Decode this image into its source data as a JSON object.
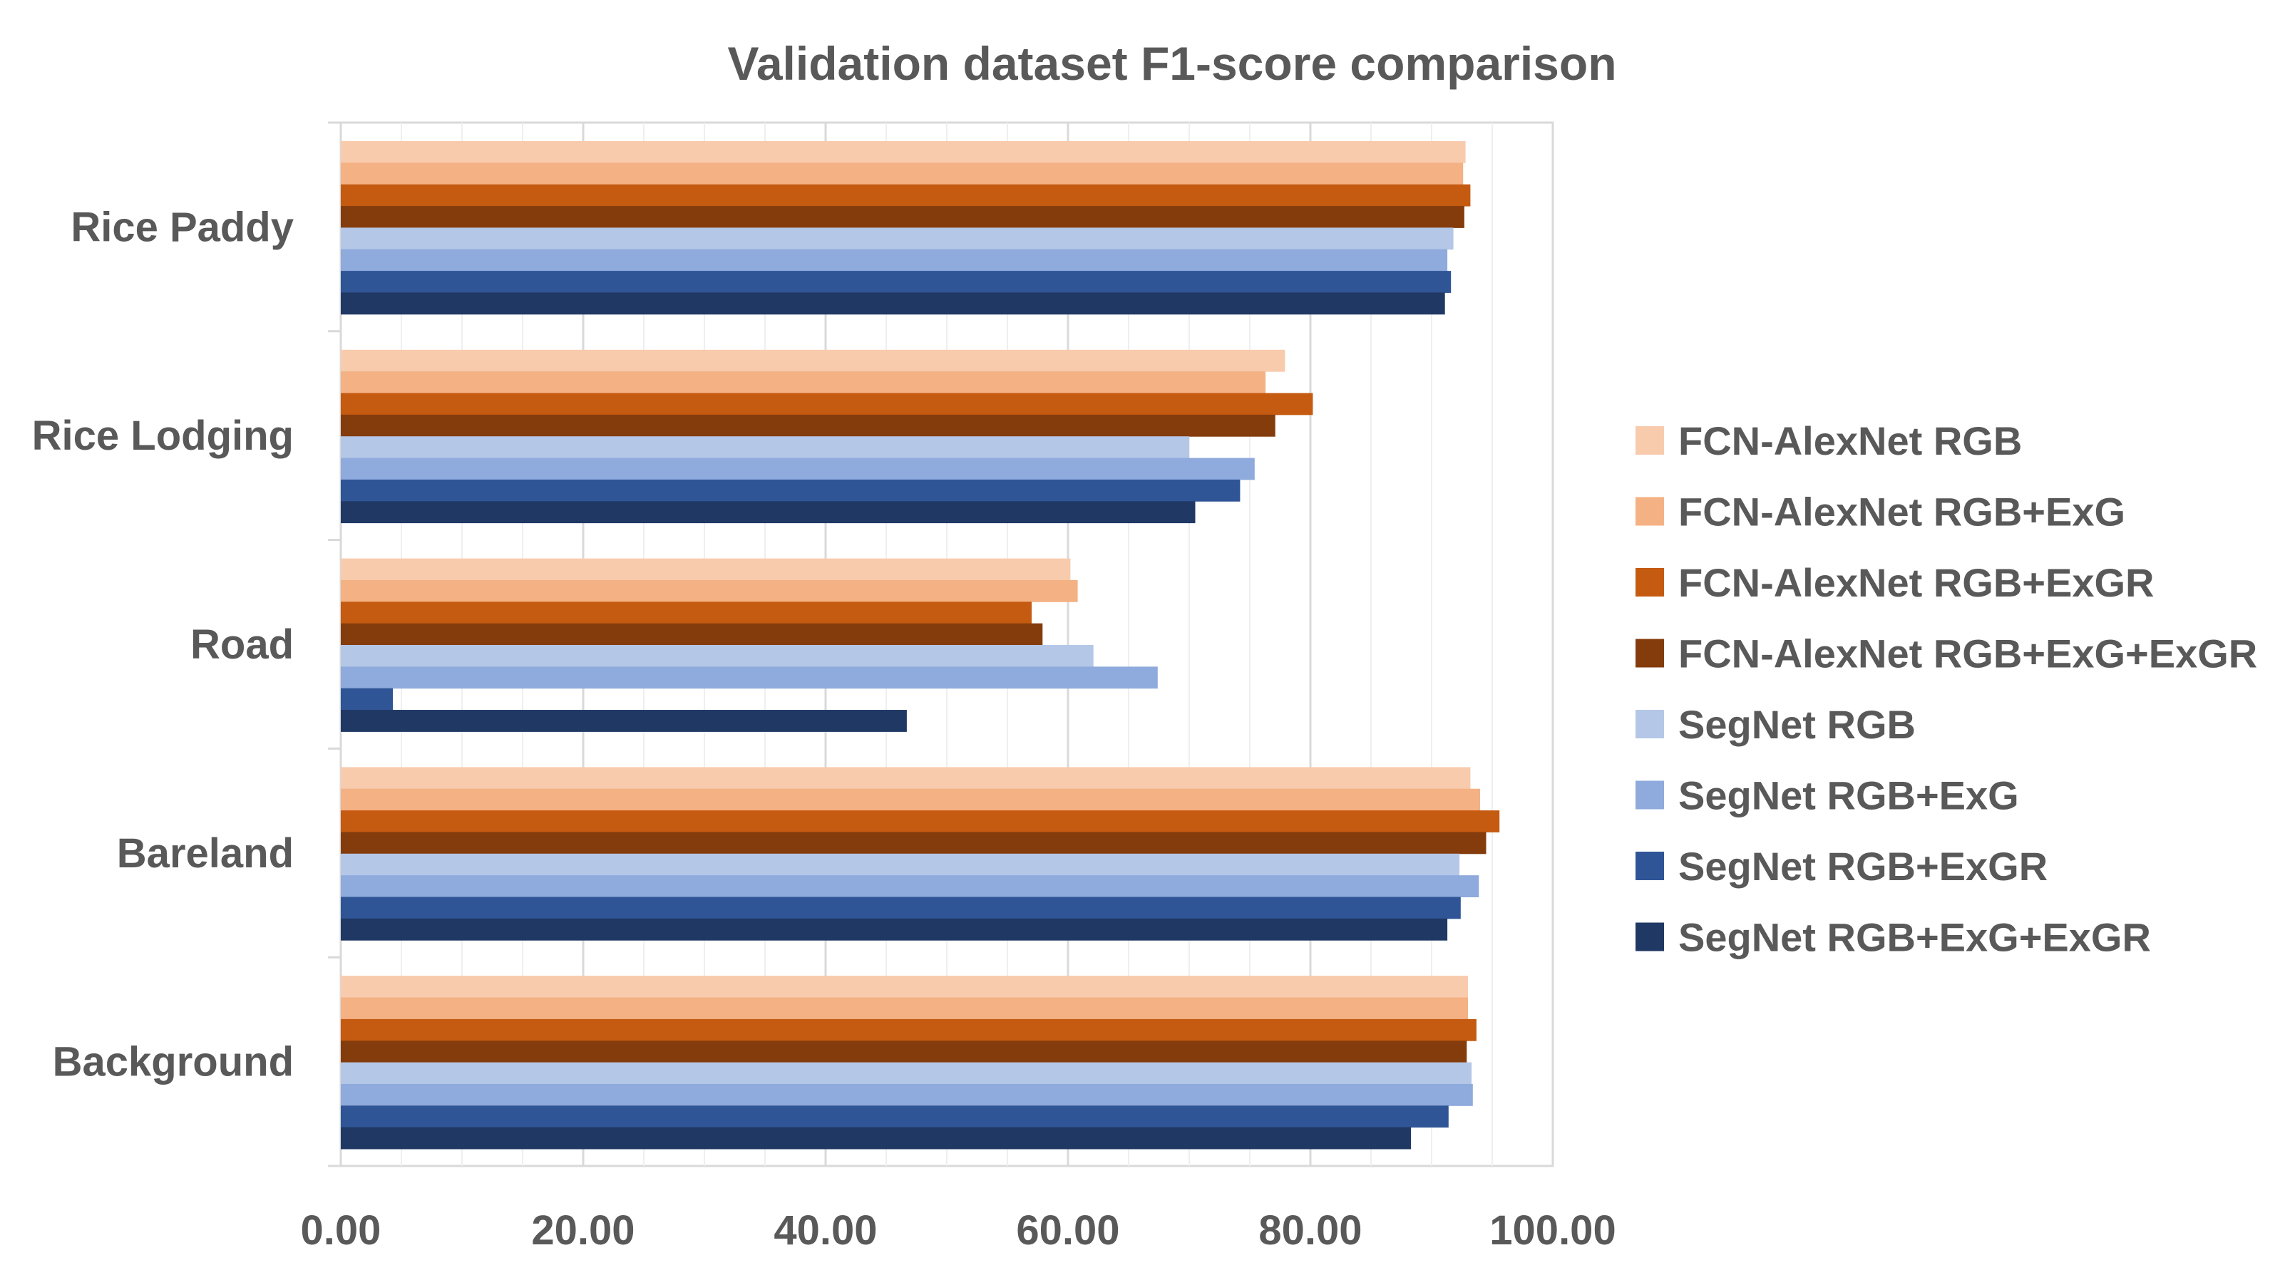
{
  "chart_data": {
    "type": "bar",
    "orientation": "horizontal",
    "title": "Validation dataset F1-score comparison",
    "xlabel": "",
    "ylabel": "",
    "xlim": [
      0,
      100
    ],
    "xticks": [
      0,
      20,
      40,
      60,
      80,
      100
    ],
    "tick_labels": [
      "0.00",
      "20.00",
      "40.00",
      "60.00",
      "80.00",
      "100.00"
    ],
    "grid": "vertical",
    "legend_position": "right",
    "categories": [
      "Rice Paddy",
      "Rice Lodging",
      "Road",
      "Bareland",
      "Background"
    ],
    "series": [
      {
        "name": "FCN-AlexNet RGB",
        "color": "#F8CBAD",
        "values": [
          92.8,
          77.9,
          60.2,
          93.2,
          93.0
        ]
      },
      {
        "name": "FCN-AlexNet RGB+ExG",
        "color": "#F4B183",
        "values": [
          92.6,
          76.3,
          60.8,
          94.0,
          93.0
        ]
      },
      {
        "name": "FCN-AlexNet RGB+ExGR",
        "color": "#C55A11",
        "values": [
          93.2,
          80.2,
          57.0,
          95.6,
          93.7
        ]
      },
      {
        "name": "FCN-AlexNet RGB+ExG+ExGR",
        "color": "#843C0C",
        "values": [
          92.7,
          77.1,
          57.9,
          94.5,
          92.9
        ]
      },
      {
        "name": "SegNet RGB",
        "color": "#B4C7E7",
        "values": [
          91.8,
          70.0,
          62.1,
          92.3,
          93.3
        ]
      },
      {
        "name": "SegNet RGB+ExG",
        "color": "#8FAADC",
        "values": [
          91.3,
          75.4,
          67.4,
          93.9,
          93.4
        ]
      },
      {
        "name": "SegNet RGB+ExGR",
        "color": "#2F5597",
        "values": [
          91.6,
          74.2,
          4.3,
          92.4,
          91.4
        ]
      },
      {
        "name": "SegNet RGB+ExG+ExGR",
        "color": "#203864",
        "values": [
          91.1,
          70.5,
          46.7,
          91.3,
          88.3
        ]
      }
    ]
  }
}
